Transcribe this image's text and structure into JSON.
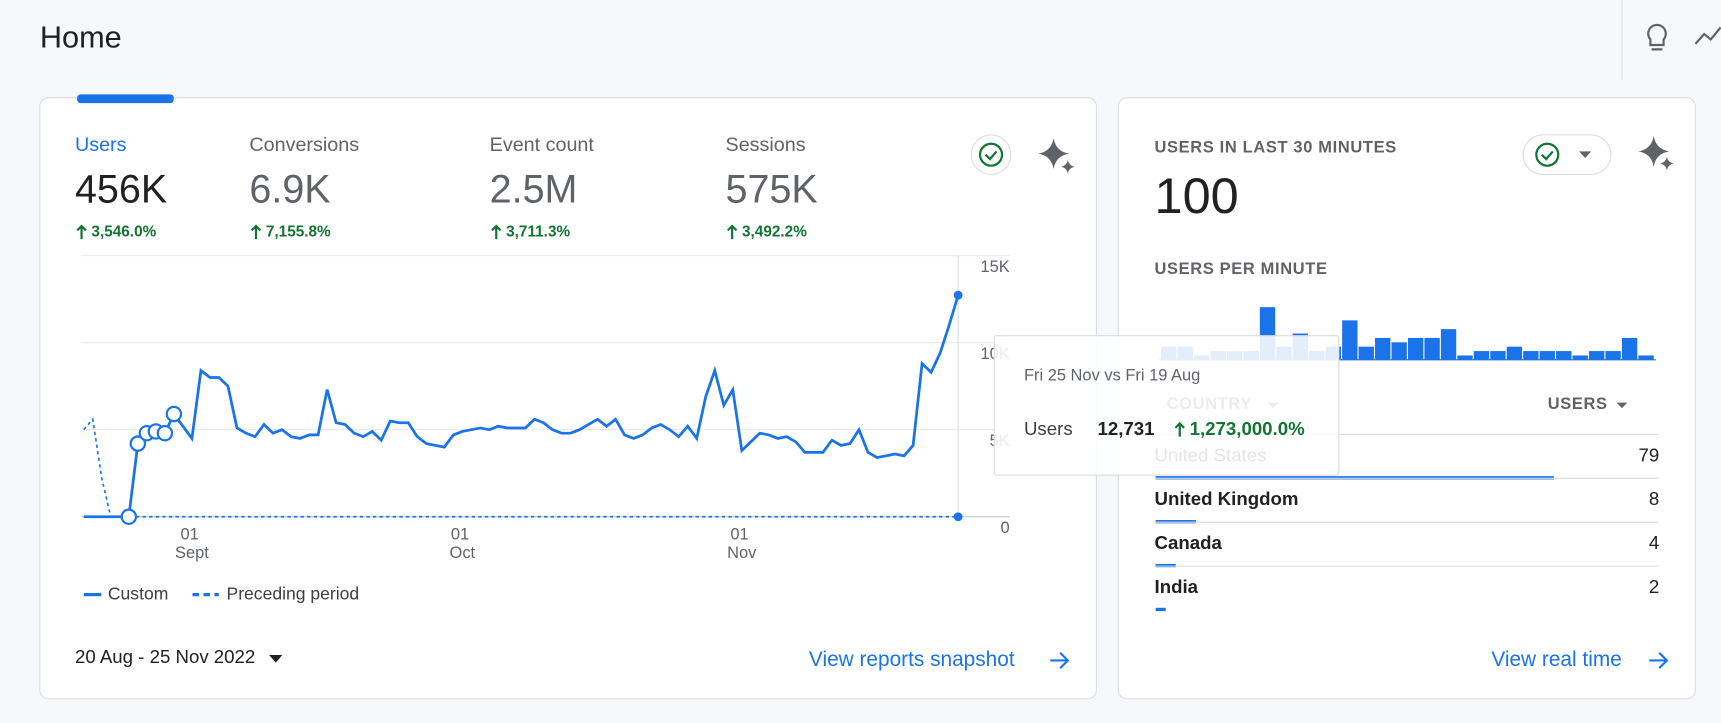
{
  "header": {
    "title": "Home"
  },
  "metrics": [
    {
      "label": "Users",
      "value": "456K",
      "change": "3,546.0%"
    },
    {
      "label": "Conversions",
      "value": "6.9K",
      "change": "7,155.8%"
    },
    {
      "label": "Event count",
      "value": "2.5M",
      "change": "3,711.3%"
    },
    {
      "label": "Sessions",
      "value": "575K",
      "change": "3,492.2%"
    }
  ],
  "date_range": "20 Aug - 25 Nov 2022",
  "reports_link": "View reports snapshot",
  "realtime": {
    "title": "USERS IN LAST 30 MINUTES",
    "value": "100",
    "link": "View real time"
  },
  "country_table": {
    "headers": [
      "COUNTRY",
      "USERS"
    ],
    "rows": [
      {
        "country": "United States",
        "users": 79
      },
      {
        "country": "United Kingdom",
        "users": 8
      },
      {
        "country": "Canada",
        "users": 4
      },
      {
        "country": "India",
        "users": 2
      }
    ]
  },
  "tooltip": {
    "date": "Fri 25 Nov vs Fri 19 Aug",
    "metric": "Users",
    "value": "12,731",
    "change": "1,273,000.0%"
  },
  "chart_data": [
    {
      "type": "line",
      "categories": [
        null,
        null,
        null,
        null,
        null,
        null,
        null,
        null,
        null,
        null,
        null,
        null,
        "01 Sept",
        null,
        null,
        null,
        null,
        null,
        null,
        null,
        null,
        null,
        null,
        null,
        null,
        null,
        null,
        null,
        null,
        null,
        null,
        null,
        null,
        null,
        null,
        null,
        null,
        null,
        null,
        null,
        null,
        null,
        "01 Oct",
        null,
        null,
        null,
        null,
        null,
        null,
        null,
        null,
        null,
        null,
        null,
        null,
        null,
        null,
        null,
        null,
        null,
        null,
        null,
        null,
        null,
        null,
        null,
        null,
        null,
        null,
        null,
        null,
        null,
        null,
        "01 Nov",
        null,
        null,
        null,
        null,
        null,
        null,
        null,
        null,
        null,
        null,
        null,
        null,
        null,
        null,
        null,
        null,
        null,
        null,
        null,
        null,
        null,
        null,
        null,
        null
      ],
      "series": [
        {
          "name": "Custom",
          "color": "#1a73e8",
          "values": [
            0,
            0,
            0,
            0,
            0,
            0,
            4200,
            4800,
            4900,
            4800,
            5900,
            5200,
            4500,
            8400,
            8000,
            8000,
            7500,
            5100,
            4800,
            4600,
            5300,
            4800,
            5000,
            4600,
            4500,
            4700,
            4700,
            7300,
            5400,
            5300,
            4800,
            4600,
            4900,
            4400,
            5500,
            5400,
            5400,
            4600,
            4200,
            4100,
            4000,
            4700,
            4900,
            5000,
            5100,
            5000,
            5200,
            5100,
            5100,
            5100,
            5600,
            5400,
            5000,
            4800,
            4800,
            5000,
            5300,
            5600,
            5200,
            5600,
            4700,
            4500,
            4700,
            5100,
            5300,
            5000,
            4600,
            5200,
            4500,
            6900,
            8400,
            6400,
            7300,
            3800,
            4300,
            4800,
            4700,
            4500,
            4600,
            4300,
            3700,
            3700,
            3700,
            4400,
            4100,
            4200,
            5000,
            3700,
            3400,
            3500,
            3600,
            3500,
            4100,
            8800,
            8300,
            9400,
            11000,
            12731
          ]
        },
        {
          "name": "Preceding period",
          "color": "#1a73e8",
          "values": [
            5000,
            5600,
            2200,
            0,
            0,
            0,
            0,
            0,
            0,
            0,
            0,
            0,
            0,
            0,
            0,
            0,
            0,
            0,
            0,
            0,
            0,
            0,
            0,
            0,
            0,
            0,
            0,
            0,
            0,
            0,
            0,
            0,
            0,
            0,
            0,
            0,
            0,
            0,
            0,
            0,
            0,
            0,
            0,
            0,
            0,
            0,
            0,
            0,
            0,
            0,
            0,
            0,
            0,
            0,
            0,
            0,
            0,
            0,
            0,
            0,
            0,
            0,
            0,
            0,
            0,
            0,
            0,
            0,
            0,
            0,
            0,
            0,
            0,
            0,
            0,
            0,
            0,
            0,
            0,
            0,
            0,
            0,
            0,
            0,
            0,
            0,
            0,
            0,
            0,
            0,
            0,
            0,
            0,
            0,
            0,
            0,
            0,
            0
          ]
        }
      ],
      "ylim": [
        0,
        15000
      ],
      "yticks": [
        {
          "value": 0,
          "label": "0"
        },
        {
          "value": 5000,
          "label": "5K"
        },
        {
          "value": 10000,
          "label": "10K"
        },
        {
          "value": 15000,
          "label": "15K"
        }
      ],
      "grid": true
    },
    {
      "type": "bar",
      "title": "USERS PER MINUTE",
      "color": "#1a73e8",
      "values": [
        3,
        3,
        1,
        2,
        2,
        2,
        12,
        3,
        6,
        2,
        3,
        9,
        3,
        5,
        4,
        5,
        5,
        7,
        1,
        2,
        2,
        3,
        2,
        2,
        2,
        1,
        2,
        2,
        5,
        1
      ]
    }
  ]
}
